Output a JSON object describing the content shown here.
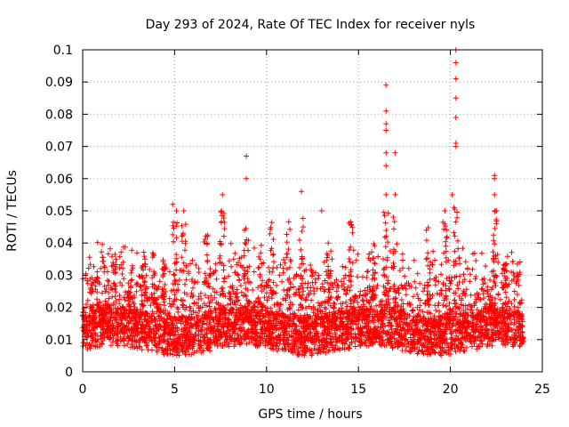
{
  "chart_data": {
    "type": "scatter",
    "title": "Day 293 of 2024, Rate Of TEC Index for receiver nyls",
    "xlabel": "GPS time / hours",
    "ylabel": "ROTI / TECUs",
    "xlim": [
      0,
      25
    ],
    "ylim": [
      0,
      0.1
    ],
    "xticks": [
      0,
      5,
      10,
      15,
      20,
      25
    ],
    "xtick_labels": [
      "0",
      "5",
      "10",
      "15",
      "20",
      "25"
    ],
    "yticks": [
      0,
      0.01,
      0.02,
      0.03,
      0.04,
      0.05,
      0.06,
      0.07,
      0.08,
      0.09,
      0.1
    ],
    "ytick_labels": [
      "0",
      "0.01",
      "0.02",
      "0.03",
      "0.04",
      "0.05",
      "0.06",
      "0.07",
      "0.08",
      "0.09",
      "0.1"
    ],
    "grid": true,
    "marker": "+",
    "color": "#ff0000",
    "series": [
      {
        "name": "ROTI",
        "x_range": [
          0,
          24
        ],
        "typical_range": [
          0.005,
          0.03
        ],
        "outliers": [
          {
            "x": 4.9,
            "y": 0.052
          },
          {
            "x": 5.1,
            "y": 0.05
          },
          {
            "x": 5.5,
            "y": 0.05
          },
          {
            "x": 7.6,
            "y": 0.055
          },
          {
            "x": 8.9,
            "y": 0.067
          },
          {
            "x": 8.9,
            "y": 0.06
          },
          {
            "x": 11.9,
            "y": 0.056
          },
          {
            "x": 13.0,
            "y": 0.05
          },
          {
            "x": 16.5,
            "y": 0.089
          },
          {
            "x": 16.5,
            "y": 0.081
          },
          {
            "x": 16.5,
            "y": 0.077
          },
          {
            "x": 16.5,
            "y": 0.075
          },
          {
            "x": 16.5,
            "y": 0.068
          },
          {
            "x": 16.5,
            "y": 0.064
          },
          {
            "x": 16.5,
            "y": 0.055
          },
          {
            "x": 17.0,
            "y": 0.068
          },
          {
            "x": 17.0,
            "y": 0.055
          },
          {
            "x": 19.7,
            "y": 0.05
          },
          {
            "x": 20.3,
            "y": 0.1
          },
          {
            "x": 20.3,
            "y": 0.096
          },
          {
            "x": 20.3,
            "y": 0.091
          },
          {
            "x": 20.3,
            "y": 0.085
          },
          {
            "x": 20.3,
            "y": 0.079
          },
          {
            "x": 20.3,
            "y": 0.071
          },
          {
            "x": 20.3,
            "y": 0.07
          },
          {
            "x": 20.1,
            "y": 0.055
          },
          {
            "x": 22.4,
            "y": 0.061
          },
          {
            "x": 22.4,
            "y": 0.06
          },
          {
            "x": 22.4,
            "y": 0.055
          },
          {
            "x": 22.5,
            "y": 0.05
          },
          {
            "x": 22.5,
            "y": 0.046
          }
        ]
      }
    ]
  }
}
